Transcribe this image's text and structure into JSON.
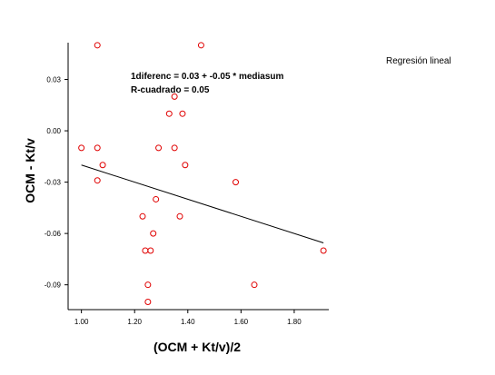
{
  "chart_data": {
    "type": "scatter",
    "title": "",
    "xlabel": "(OCM + Kt/v)/2",
    "ylabel": "OCM - Kt/v",
    "xlim": [
      0.95,
      1.93
    ],
    "ylim": [
      -0.1045,
      0.0515
    ],
    "x_ticks": [
      {
        "value": 1.0,
        "label": "1.00"
      },
      {
        "value": 1.2,
        "label": "1.20"
      },
      {
        "value": 1.4,
        "label": "1.40"
      },
      {
        "value": 1.6,
        "label": "1.60"
      },
      {
        "value": 1.8,
        "label": "1.80"
      }
    ],
    "y_ticks": [
      {
        "value": 0.03,
        "label": "0.03"
      },
      {
        "value": 0.0,
        "label": "0.00"
      },
      {
        "value": -0.03,
        "label": "-0.03"
      },
      {
        "value": -0.06,
        "label": "-0.06"
      },
      {
        "value": -0.09,
        "label": "-0.09"
      }
    ],
    "grid": false,
    "legend": {
      "text": "Regresión lineal",
      "placement": "top-right"
    },
    "marker_color": "#e00000",
    "line_color": "#000000",
    "regression": {
      "intercept": 0.03,
      "slope": -0.05,
      "equation_label": "1diferenc = 0.03 + -0.05 * mediasum",
      "r_squared_label": "R-cuadrado = 0.05",
      "x_range": [
        1.0,
        1.91
      ]
    },
    "points": [
      {
        "x": 1.06,
        "y": 0.05
      },
      {
        "x": 1.45,
        "y": 0.05
      },
      {
        "x": 1.35,
        "y": 0.02
      },
      {
        "x": 1.33,
        "y": 0.01
      },
      {
        "x": 1.38,
        "y": 0.01
      },
      {
        "x": 1.0,
        "y": -0.01
      },
      {
        "x": 1.06,
        "y": -0.01
      },
      {
        "x": 1.29,
        "y": -0.01
      },
      {
        "x": 1.35,
        "y": -0.01
      },
      {
        "x": 1.08,
        "y": -0.02
      },
      {
        "x": 1.39,
        "y": -0.02
      },
      {
        "x": 1.06,
        "y": -0.029
      },
      {
        "x": 1.58,
        "y": -0.03
      },
      {
        "x": 1.28,
        "y": -0.04
      },
      {
        "x": 1.23,
        "y": -0.05
      },
      {
        "x": 1.37,
        "y": -0.05
      },
      {
        "x": 1.27,
        "y": -0.06
      },
      {
        "x": 1.24,
        "y": -0.07
      },
      {
        "x": 1.26,
        "y": -0.07
      },
      {
        "x": 1.91,
        "y": -0.07
      },
      {
        "x": 1.25,
        "y": -0.09
      },
      {
        "x": 1.65,
        "y": -0.09
      },
      {
        "x": 1.25,
        "y": -0.1
      }
    ]
  }
}
